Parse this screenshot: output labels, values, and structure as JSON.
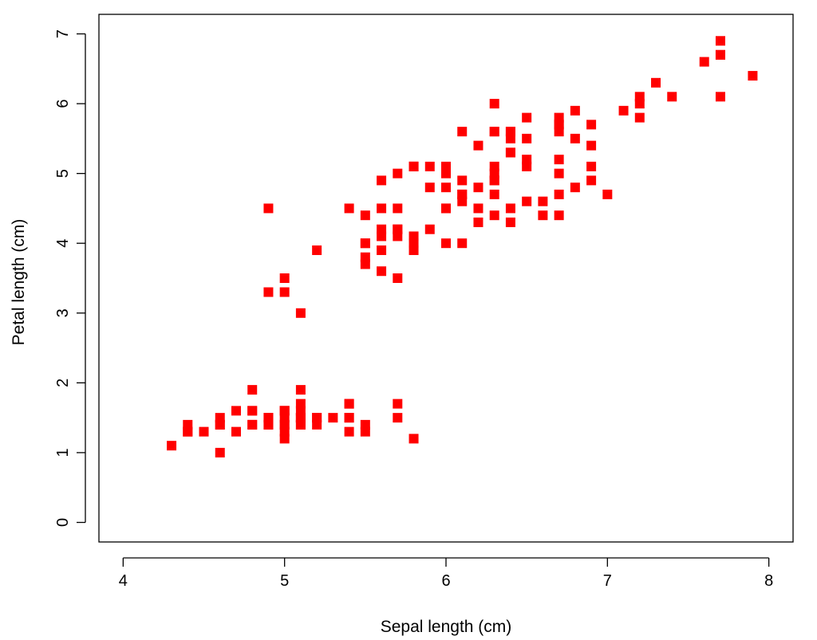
{
  "chart_data": {
    "type": "scatter",
    "title": "",
    "xlabel": "Sepal length (cm)",
    "ylabel": "Petal length (cm)",
    "xlim": [
      3.85,
      8.15
    ],
    "ylim": [
      -0.28,
      7.28
    ],
    "xticks": [
      4,
      5,
      6,
      7,
      8
    ],
    "yticks": [
      0,
      1,
      2,
      3,
      4,
      5,
      6,
      7
    ],
    "grid": false,
    "marker": "square",
    "color": "#ff0000",
    "points": [
      {
        "x": 5.1,
        "y": 1.4
      },
      {
        "x": 4.9,
        "y": 1.4
      },
      {
        "x": 4.7,
        "y": 1.3
      },
      {
        "x": 4.6,
        "y": 1.5
      },
      {
        "x": 5.0,
        "y": 1.4
      },
      {
        "x": 5.4,
        "y": 1.7
      },
      {
        "x": 4.6,
        "y": 1.4
      },
      {
        "x": 5.0,
        "y": 1.5
      },
      {
        "x": 4.4,
        "y": 1.4
      },
      {
        "x": 4.9,
        "y": 1.5
      },
      {
        "x": 5.4,
        "y": 1.5
      },
      {
        "x": 4.8,
        "y": 1.6
      },
      {
        "x": 4.8,
        "y": 1.4
      },
      {
        "x": 4.3,
        "y": 1.1
      },
      {
        "x": 5.8,
        "y": 1.2
      },
      {
        "x": 5.7,
        "y": 1.5
      },
      {
        "x": 5.4,
        "y": 1.3
      },
      {
        "x": 5.1,
        "y": 1.4
      },
      {
        "x": 5.7,
        "y": 1.7
      },
      {
        "x": 5.1,
        "y": 1.5
      },
      {
        "x": 5.4,
        "y": 1.7
      },
      {
        "x": 5.1,
        "y": 1.5
      },
      {
        "x": 4.6,
        "y": 1.0
      },
      {
        "x": 5.1,
        "y": 1.7
      },
      {
        "x": 4.8,
        "y": 1.9
      },
      {
        "x": 5.0,
        "y": 1.6
      },
      {
        "x": 5.0,
        "y": 1.6
      },
      {
        "x": 5.2,
        "y": 1.5
      },
      {
        "x": 5.2,
        "y": 1.4
      },
      {
        "x": 4.7,
        "y": 1.6
      },
      {
        "x": 4.8,
        "y": 1.6
      },
      {
        "x": 5.4,
        "y": 1.5
      },
      {
        "x": 5.2,
        "y": 1.5
      },
      {
        "x": 5.5,
        "y": 1.4
      },
      {
        "x": 4.9,
        "y": 1.5
      },
      {
        "x": 5.0,
        "y": 1.2
      },
      {
        "x": 5.5,
        "y": 1.3
      },
      {
        "x": 4.9,
        "y": 1.4
      },
      {
        "x": 4.4,
        "y": 1.3
      },
      {
        "x": 5.1,
        "y": 1.5
      },
      {
        "x": 5.0,
        "y": 1.3
      },
      {
        "x": 4.5,
        "y": 1.3
      },
      {
        "x": 4.4,
        "y": 1.3
      },
      {
        "x": 5.0,
        "y": 1.6
      },
      {
        "x": 5.1,
        "y": 1.9
      },
      {
        "x": 4.8,
        "y": 1.4
      },
      {
        "x": 5.1,
        "y": 1.6
      },
      {
        "x": 4.6,
        "y": 1.4
      },
      {
        "x": 5.3,
        "y": 1.5
      },
      {
        "x": 5.0,
        "y": 1.4
      },
      {
        "x": 7.0,
        "y": 4.7
      },
      {
        "x": 6.4,
        "y": 4.5
      },
      {
        "x": 6.9,
        "y": 4.9
      },
      {
        "x": 5.5,
        "y": 4.0
      },
      {
        "x": 6.5,
        "y": 4.6
      },
      {
        "x": 5.7,
        "y": 4.5
      },
      {
        "x": 6.3,
        "y": 4.7
      },
      {
        "x": 4.9,
        "y": 3.3
      },
      {
        "x": 6.6,
        "y": 4.6
      },
      {
        "x": 5.2,
        "y": 3.9
      },
      {
        "x": 5.0,
        "y": 3.5
      },
      {
        "x": 5.9,
        "y": 4.2
      },
      {
        "x": 6.0,
        "y": 4.0
      },
      {
        "x": 6.1,
        "y": 4.7
      },
      {
        "x": 5.6,
        "y": 3.6
      },
      {
        "x": 6.7,
        "y": 4.4
      },
      {
        "x": 5.6,
        "y": 4.5
      },
      {
        "x": 5.8,
        "y": 4.1
      },
      {
        "x": 6.2,
        "y": 4.5
      },
      {
        "x": 5.6,
        "y": 3.9
      },
      {
        "x": 5.9,
        "y": 4.8
      },
      {
        "x": 6.1,
        "y": 4.0
      },
      {
        "x": 6.3,
        "y": 4.9
      },
      {
        "x": 6.1,
        "y": 4.7
      },
      {
        "x": 6.4,
        "y": 4.3
      },
      {
        "x": 6.6,
        "y": 4.4
      },
      {
        "x": 6.8,
        "y": 4.8
      },
      {
        "x": 6.7,
        "y": 5.0
      },
      {
        "x": 6.0,
        "y": 4.5
      },
      {
        "x": 5.7,
        "y": 3.5
      },
      {
        "x": 5.5,
        "y": 3.8
      },
      {
        "x": 5.5,
        "y": 3.7
      },
      {
        "x": 5.8,
        "y": 3.9
      },
      {
        "x": 6.0,
        "y": 5.1
      },
      {
        "x": 5.4,
        "y": 4.5
      },
      {
        "x": 6.0,
        "y": 4.5
      },
      {
        "x": 6.7,
        "y": 4.7
      },
      {
        "x": 6.3,
        "y": 4.4
      },
      {
        "x": 5.6,
        "y": 4.1
      },
      {
        "x": 5.5,
        "y": 4.0
      },
      {
        "x": 5.5,
        "y": 4.4
      },
      {
        "x": 6.1,
        "y": 4.6
      },
      {
        "x": 5.8,
        "y": 4.0
      },
      {
        "x": 5.0,
        "y": 3.3
      },
      {
        "x": 5.6,
        "y": 4.2
      },
      {
        "x": 5.7,
        "y": 4.2
      },
      {
        "x": 5.7,
        "y": 4.2
      },
      {
        "x": 6.2,
        "y": 4.3
      },
      {
        "x": 5.1,
        "y": 3.0
      },
      {
        "x": 5.7,
        "y": 4.1
      },
      {
        "x": 6.3,
        "y": 6.0
      },
      {
        "x": 5.8,
        "y": 5.1
      },
      {
        "x": 7.1,
        "y": 5.9
      },
      {
        "x": 6.3,
        "y": 5.6
      },
      {
        "x": 6.5,
        "y": 5.8
      },
      {
        "x": 7.6,
        "y": 6.6
      },
      {
        "x": 4.9,
        "y": 4.5
      },
      {
        "x": 7.3,
        "y": 6.3
      },
      {
        "x": 6.7,
        "y": 5.8
      },
      {
        "x": 7.2,
        "y": 6.1
      },
      {
        "x": 6.5,
        "y": 5.1
      },
      {
        "x": 6.4,
        "y": 5.3
      },
      {
        "x": 6.8,
        "y": 5.5
      },
      {
        "x": 5.7,
        "y": 5.0
      },
      {
        "x": 5.8,
        "y": 5.1
      },
      {
        "x": 6.4,
        "y": 5.3
      },
      {
        "x": 6.5,
        "y": 5.5
      },
      {
        "x": 7.7,
        "y": 6.7
      },
      {
        "x": 7.7,
        "y": 6.9
      },
      {
        "x": 6.0,
        "y": 5.0
      },
      {
        "x": 6.9,
        "y": 5.7
      },
      {
        "x": 5.6,
        "y": 4.9
      },
      {
        "x": 7.7,
        "y": 6.7
      },
      {
        "x": 6.3,
        "y": 4.9
      },
      {
        "x": 6.7,
        "y": 5.7
      },
      {
        "x": 7.2,
        "y": 6.0
      },
      {
        "x": 6.2,
        "y": 4.8
      },
      {
        "x": 6.1,
        "y": 4.9
      },
      {
        "x": 6.4,
        "y": 5.6
      },
      {
        "x": 7.2,
        "y": 5.8
      },
      {
        "x": 7.4,
        "y": 6.1
      },
      {
        "x": 7.9,
        "y": 6.4
      },
      {
        "x": 6.4,
        "y": 5.6
      },
      {
        "x": 6.3,
        "y": 5.1
      },
      {
        "x": 6.1,
        "y": 5.6
      },
      {
        "x": 7.7,
        "y": 6.1
      },
      {
        "x": 6.3,
        "y": 5.6
      },
      {
        "x": 6.4,
        "y": 5.5
      },
      {
        "x": 6.0,
        "y": 4.8
      },
      {
        "x": 6.9,
        "y": 5.4
      },
      {
        "x": 6.7,
        "y": 5.6
      },
      {
        "x": 6.9,
        "y": 5.1
      },
      {
        "x": 5.8,
        "y": 5.1
      },
      {
        "x": 6.8,
        "y": 5.9
      },
      {
        "x": 6.7,
        "y": 5.7
      },
      {
        "x": 6.7,
        "y": 5.2
      },
      {
        "x": 6.3,
        "y": 5.0
      },
      {
        "x": 6.5,
        "y": 5.2
      },
      {
        "x": 6.2,
        "y": 5.4
      },
      {
        "x": 5.9,
        "y": 5.1
      }
    ]
  }
}
